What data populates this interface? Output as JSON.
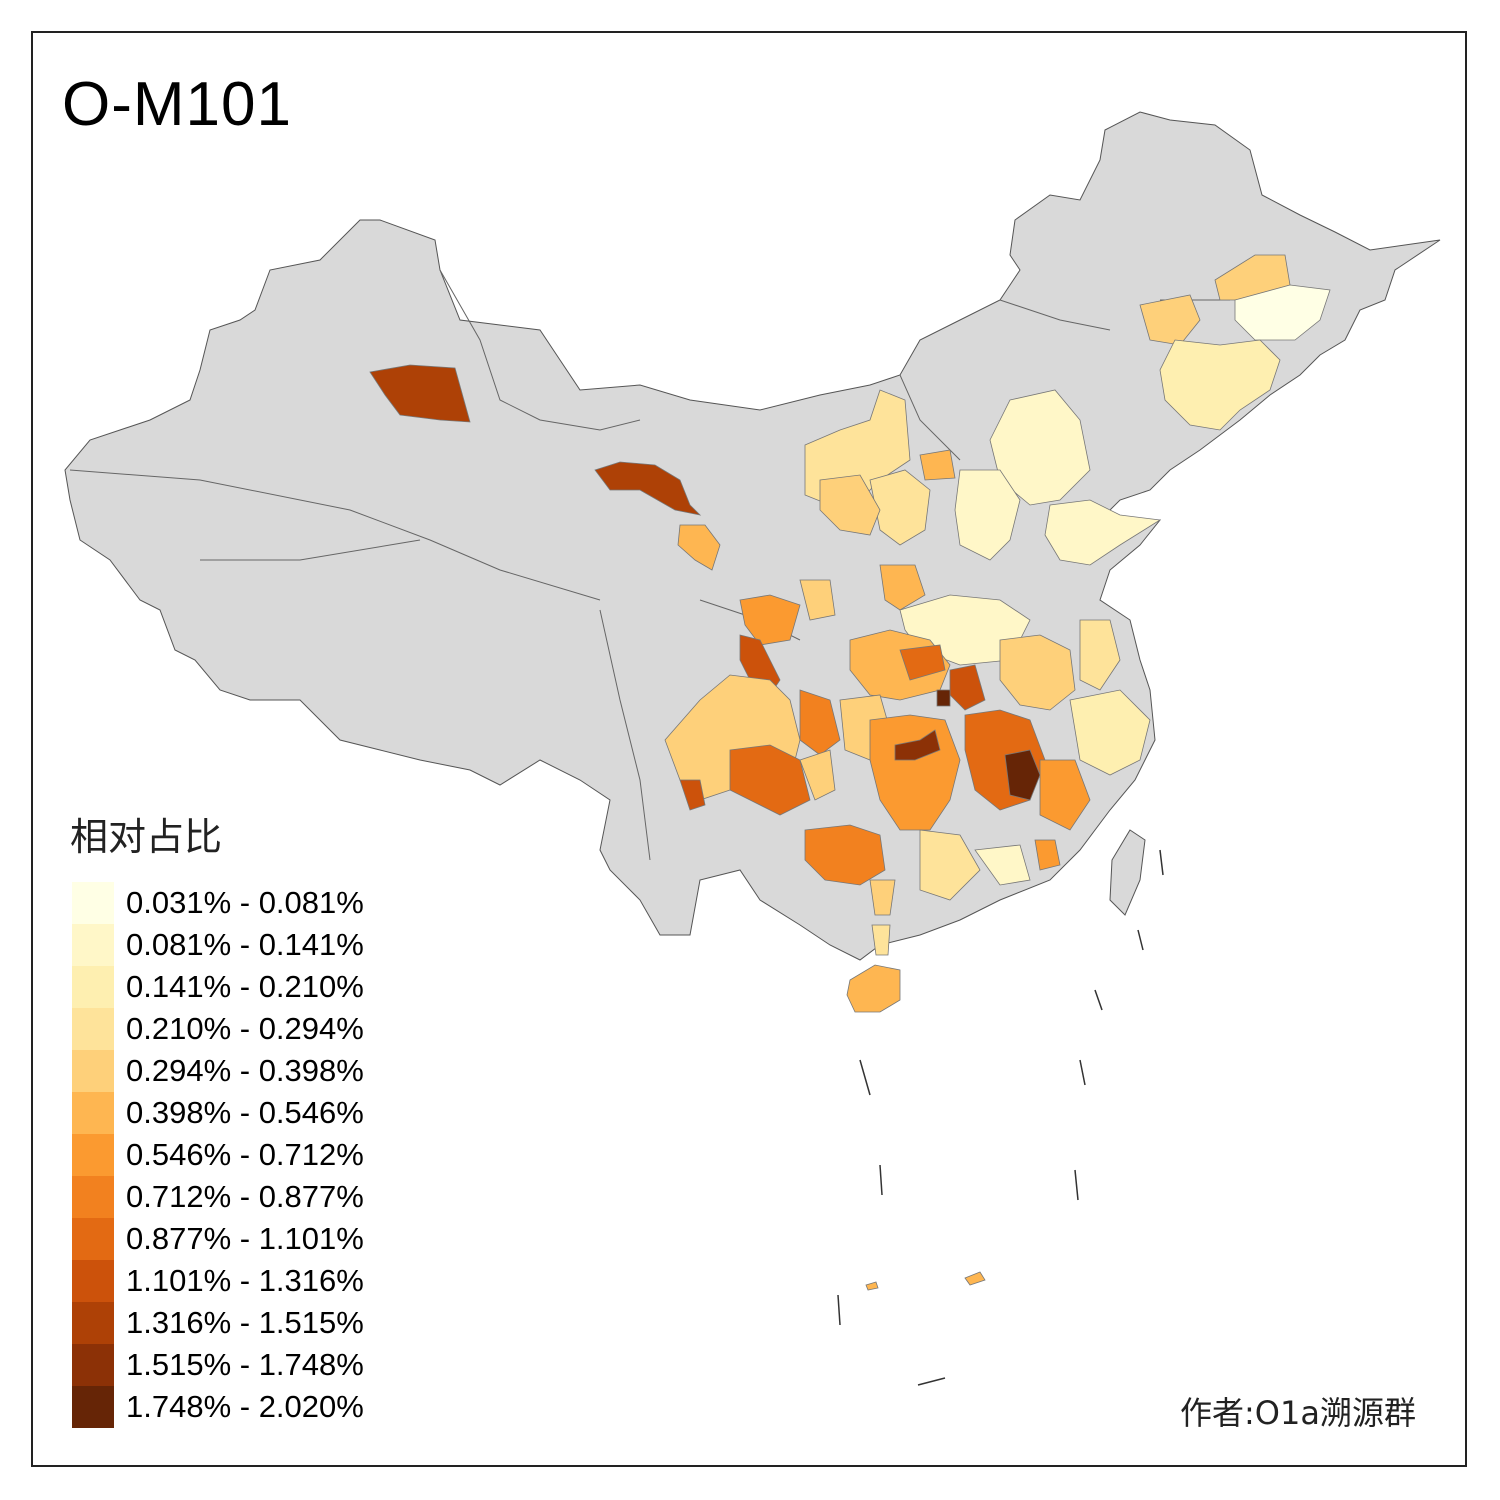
{
  "title": "O-M101",
  "legend": {
    "title": "相对占比",
    "items": [
      {
        "label": "0.031% - 0.081%",
        "color": "#FFFFE5"
      },
      {
        "label": "0.081% - 0.141%",
        "color": "#FFF7C8"
      },
      {
        "label": "0.141% - 0.210%",
        "color": "#FEEFB0"
      },
      {
        "label": "0.210% - 0.294%",
        "color": "#FEE39A"
      },
      {
        "label": "0.294% - 0.398%",
        "color": "#FED07A"
      },
      {
        "label": "0.398% - 0.546%",
        "color": "#FEB651"
      },
      {
        "label": "0.546% - 0.712%",
        "color": "#FB9A30"
      },
      {
        "label": "0.712% - 0.877%",
        "color": "#F2811F"
      },
      {
        "label": "0.877% - 1.101%",
        "color": "#E36A13"
      },
      {
        "label": "1.101% - 1.316%",
        "color": "#CC520B"
      },
      {
        "label": "1.316% - 1.515%",
        "color": "#AE4106"
      },
      {
        "label": "1.515% - 1.748%",
        "color": "#8C3106"
      },
      {
        "label": "1.748% - 2.020%",
        "color": "#662506"
      }
    ]
  },
  "author": "作者:O1a溯源群",
  "base_color": "#D9D9D9"
}
